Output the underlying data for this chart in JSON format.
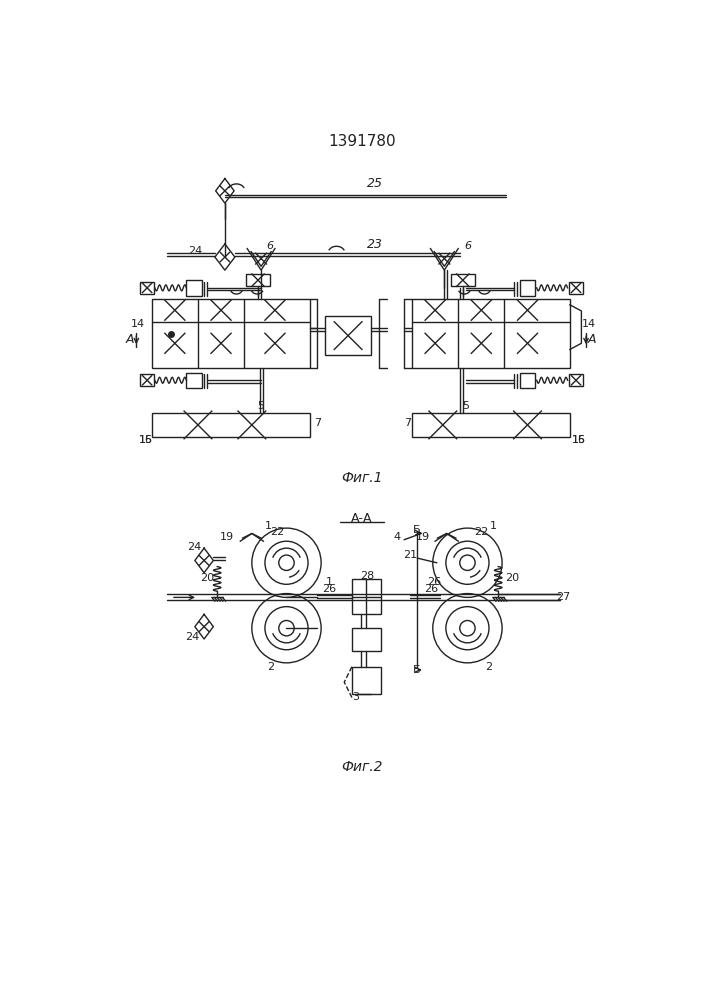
{
  "title": "1391780",
  "fig1_caption": "Фиг.1",
  "fig2_caption": "Фиг.2",
  "bg_color": "#ffffff",
  "line_color": "#222222",
  "lw": 1.0
}
